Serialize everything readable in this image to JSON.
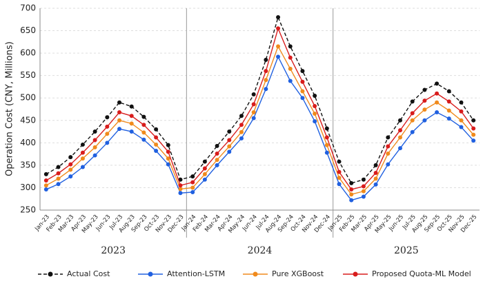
{
  "chart_data": {
    "type": "line",
    "ylabel": "Operation Cost (CNY, Millions)",
    "categories": [
      "Jan-23",
      "Feb-23",
      "Mar-23",
      "Apr-23",
      "May-23",
      "Jun-23",
      "Jul-23",
      "Aug-23",
      "Sep-23",
      "Oct-23",
      "Nov-23",
      "Dec-23",
      "Jan-24",
      "Feb-24",
      "Mar-24",
      "Apr-24",
      "May-24",
      "Jun-24",
      "Jul-24",
      "Aug-24",
      "Sep-24",
      "Oct-24",
      "Nov-24",
      "Dec-24",
      "Jan-25",
      "Feb-25",
      "Mar-25",
      "Apr-25",
      "May-25",
      "Jun-25",
      "Jul-25",
      "Aug-25",
      "Sep-25",
      "Oct-25",
      "Nov-25",
      "Dec-25"
    ],
    "groups": [
      "2023",
      "2024",
      "2025"
    ],
    "series": [
      {
        "name": "Actual Cost",
        "color": "#111111",
        "style": "dashed",
        "values": [
          330,
          346,
          368,
          396,
          425,
          457,
          490,
          481,
          458,
          430,
          395,
          318,
          325,
          358,
          393,
          425,
          460,
          508,
          585,
          680,
          615,
          560,
          505,
          432,
          358,
          310,
          318,
          350,
          412,
          450,
          492,
          518,
          532,
          515,
          490,
          450
        ]
      },
      {
        "name": "Attention-LSTM",
        "color": "#2060e0",
        "style": "solid",
        "values": [
          296,
          308,
          325,
          346,
          372,
          400,
          431,
          425,
          407,
          382,
          352,
          288,
          290,
          318,
          350,
          380,
          410,
          455,
          520,
          592,
          538,
          500,
          448,
          378,
          308,
          272,
          280,
          307,
          352,
          388,
          424,
          450,
          468,
          454,
          435,
          405
        ]
      },
      {
        "name": "Pure XGBoost",
        "color": "#f08a1c",
        "style": "solid",
        "values": [
          305,
          320,
          340,
          365,
          390,
          420,
          450,
          443,
          423,
          396,
          365,
          297,
          300,
          330,
          362,
          392,
          424,
          468,
          540,
          615,
          565,
          515,
          465,
          395,
          322,
          285,
          292,
          320,
          376,
          412,
          450,
          474,
          490,
          472,
          450,
          418
        ]
      },
      {
        "name": "Proposed Quota-ML Model",
        "color": "#d81c1c",
        "style": "solid",
        "values": [
          316,
          332,
          352,
          378,
          406,
          436,
          468,
          460,
          440,
          412,
          380,
          305,
          312,
          343,
          376,
          406,
          440,
          486,
          560,
          655,
          590,
          536,
          482,
          412,
          335,
          296,
          303,
          333,
          392,
          428,
          466,
          494,
          510,
          492,
          470,
          432
        ]
      }
    ],
    "ylim": [
      250,
      700
    ],
    "yticks": [
      250,
      300,
      350,
      400,
      450,
      500,
      550,
      600,
      650,
      700
    ],
    "grid": true,
    "legend": "bottom"
  }
}
